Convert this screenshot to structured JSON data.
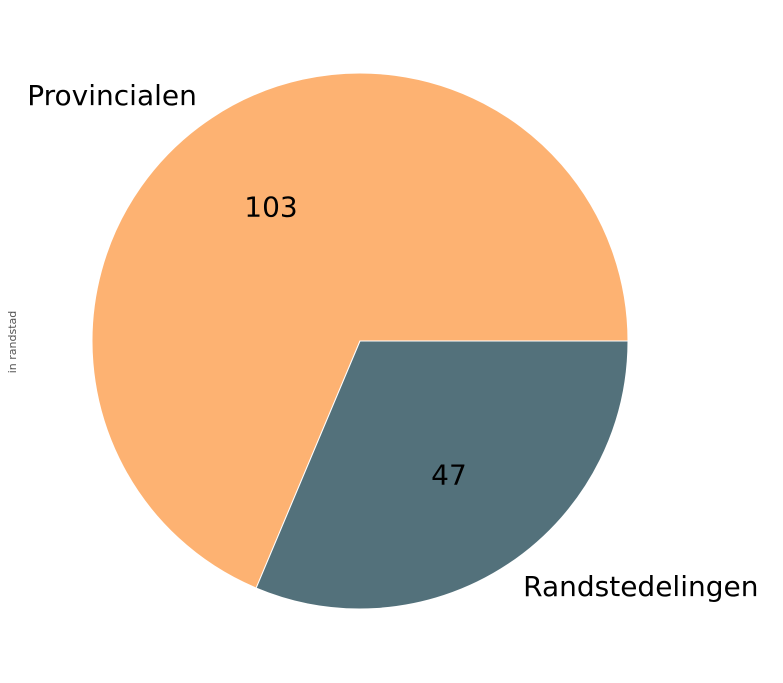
{
  "chart_data": {
    "type": "pie",
    "ylabel": "in randstad",
    "categories": [
      "Provincialen",
      "Randstedelingen"
    ],
    "values": [
      103,
      47
    ],
    "colors": [
      "#fdb272",
      "#53717b"
    ],
    "start_angle_deg": 0,
    "direction": "counterclockwise",
    "legend": "none"
  }
}
